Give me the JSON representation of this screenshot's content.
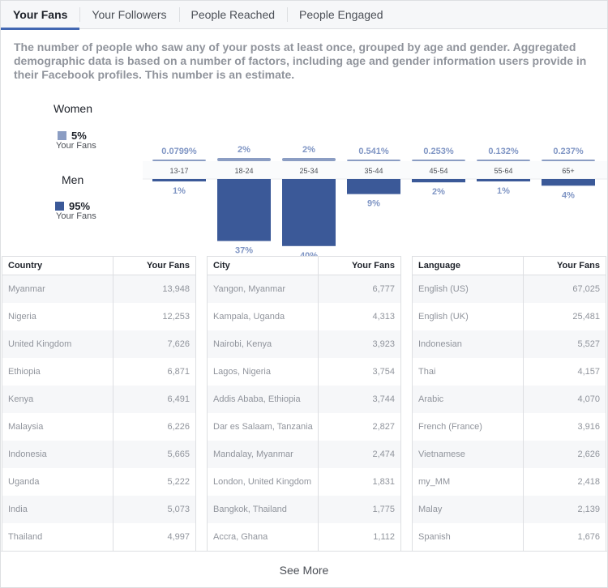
{
  "tabs": [
    {
      "label": "Your Fans",
      "active": true
    },
    {
      "label": "Your Followers",
      "active": false
    },
    {
      "label": "People Reached",
      "active": false
    },
    {
      "label": "People Engaged",
      "active": false
    }
  ],
  "description": "The number of people who saw any of your posts at least once, grouped by age and gender. Aggregated demographic data is based on a number of factors, including age and gender information users provide in their Facebook profiles. This number is an estimate.",
  "legend": {
    "women": {
      "label": "Women",
      "pct": "5%",
      "sub": "Your Fans",
      "color": "#8b9dc3"
    },
    "men": {
      "label": "Men",
      "pct": "95%",
      "sub": "Your Fans",
      "color": "#3b5998"
    }
  },
  "chart_data": {
    "type": "bar",
    "categories": [
      "13-17",
      "18-24",
      "25-34",
      "35-44",
      "45-54",
      "55-64",
      "65+"
    ],
    "series": [
      {
        "name": "Women",
        "values": [
          0.0799,
          2,
          2,
          0.541,
          0.253,
          0.132,
          0.237
        ],
        "labels": [
          "0.0799%",
          "2%",
          "2%",
          "0.541%",
          "0.253%",
          "0.132%",
          "0.237%"
        ],
        "color": "#8b9dc3"
      },
      {
        "name": "Men",
        "values": [
          1,
          37,
          40,
          9,
          2,
          1,
          4
        ],
        "labels": [
          "1%",
          "37%",
          "40%",
          "9%",
          "2%",
          "1%",
          "4%"
        ],
        "color": "#3b5998"
      }
    ]
  },
  "tables": [
    {
      "col1": "Country",
      "col2": "Your Fans",
      "rows": [
        [
          "Myanmar",
          "13,948"
        ],
        [
          "Nigeria",
          "12,253"
        ],
        [
          "United Kingdom",
          "7,626"
        ],
        [
          "Ethiopia",
          "6,871"
        ],
        [
          "Kenya",
          "6,491"
        ],
        [
          "Malaysia",
          "6,226"
        ],
        [
          "Indonesia",
          "5,665"
        ],
        [
          "Uganda",
          "5,222"
        ],
        [
          "India",
          "5,073"
        ],
        [
          "Thailand",
          "4,997"
        ]
      ]
    },
    {
      "col1": "City",
      "col2": "Your Fans",
      "rows": [
        [
          "Yangon, Myanmar",
          "6,777"
        ],
        [
          "Kampala, Uganda",
          "4,313"
        ],
        [
          "Nairobi, Kenya",
          "3,923"
        ],
        [
          "Lagos, Nigeria",
          "3,754"
        ],
        [
          "Addis Ababa, Ethiopia",
          "3,744"
        ],
        [
          "Dar es Salaam, Tanzania",
          "2,827"
        ],
        [
          "Mandalay, Myanmar",
          "2,474"
        ],
        [
          "London, United Kingdom",
          "1,831"
        ],
        [
          "Bangkok, Thailand",
          "1,775"
        ],
        [
          "Accra, Ghana",
          "1,112"
        ]
      ]
    },
    {
      "col1": "Language",
      "col2": "Your Fans",
      "rows": [
        [
          "English (US)",
          "67,025"
        ],
        [
          "English (UK)",
          "25,481"
        ],
        [
          "Indonesian",
          "5,527"
        ],
        [
          "Thai",
          "4,157"
        ],
        [
          "Arabic",
          "4,070"
        ],
        [
          "French (France)",
          "3,916"
        ],
        [
          "Vietnamese",
          "2,626"
        ],
        [
          "my_MM",
          "2,418"
        ],
        [
          "Malay",
          "2,139"
        ],
        [
          "Spanish",
          "1,676"
        ]
      ]
    }
  ],
  "see_more": "See More"
}
